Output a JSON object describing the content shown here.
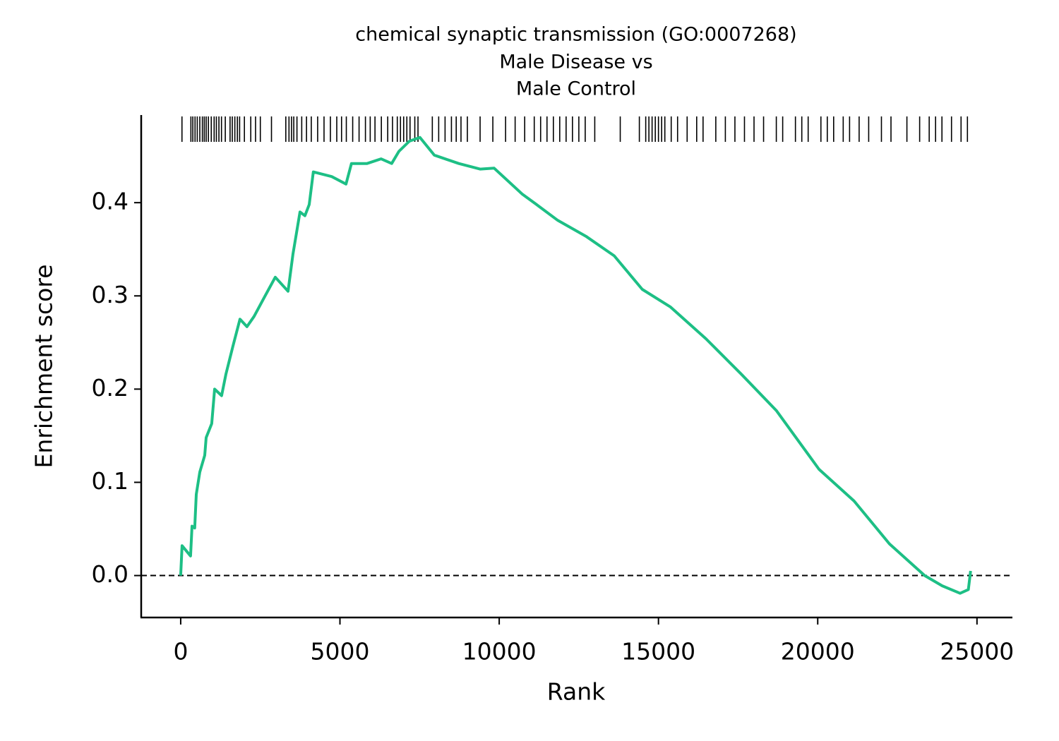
{
  "chart_data": {
    "type": "line",
    "title": [
      "chemical synaptic transmission (GO:0007268)",
      "Male Disease vs",
      "Male Control"
    ],
    "x_label": "Rank",
    "y_label": "Enrichment score",
    "color": "#1dbf85",
    "x": [
      0,
      44,
      310,
      355,
      440,
      490,
      600,
      755,
      800,
      975,
      1065,
      1285,
      1420,
      1640,
      1860,
      2080,
      2305,
      2635,
      2970,
      3370,
      3525,
      3745,
      3900,
      4035,
      4165,
      4740,
      5190,
      5360,
      5850,
      6290,
      6625,
      6850,
      7180,
      7510,
      7960,
      8730,
      9400,
      9840,
      10730,
      11170,
      11840,
      12720,
      13610,
      14490,
      15380,
      16490,
      17600,
      18700,
      20040,
      21140,
      22250,
      23360,
      23910,
      24470,
      24730,
      24800
    ],
    "values": [
      0.0,
      0.032,
      0.021,
      0.053,
      0.051,
      0.087,
      0.111,
      0.129,
      0.148,
      0.163,
      0.2,
      0.193,
      0.216,
      0.246,
      0.275,
      0.267,
      0.278,
      0.299,
      0.32,
      0.305,
      0.345,
      0.39,
      0.386,
      0.398,
      0.433,
      0.428,
      0.42,
      0.442,
      0.442,
      0.447,
      0.442,
      0.455,
      0.466,
      0.47,
      0.451,
      0.442,
      0.436,
      0.437,
      0.409,
      0.398,
      0.381,
      0.364,
      0.343,
      0.307,
      0.288,
      0.254,
      0.216,
      0.177,
      0.114,
      0.08,
      0.034,
      0.0,
      -0.011,
      -0.019,
      -0.015,
      0.005
    ],
    "hits": [
      40,
      320,
      380,
      450,
      520,
      600,
      680,
      740,
      800,
      870,
      960,
      1050,
      1120,
      1200,
      1280,
      1400,
      1550,
      1620,
      1700,
      1780,
      1850,
      2000,
      2200,
      2350,
      2500,
      2850,
      3300,
      3400,
      3480,
      3550,
      3650,
      3800,
      3950,
      4100,
      4300,
      4500,
      4700,
      4900,
      5050,
      5200,
      5400,
      5600,
      5800,
      5950,
      6100,
      6300,
      6500,
      6650,
      6800,
      6900,
      7000,
      7100,
      7200,
      7350,
      7450,
      7900,
      8100,
      8300,
      8500,
      8650,
      8800,
      9000,
      9400,
      9800,
      10200,
      10500,
      10800,
      11100,
      11300,
      11500,
      11700,
      11900,
      12100,
      12300,
      12500,
      12700,
      13000,
      13800,
      14400,
      14600,
      14700,
      14800,
      14900,
      15000,
      15100,
      15200,
      15400,
      15600,
      15900,
      16200,
      16400,
      16800,
      17100,
      17400,
      17700,
      18000,
      18300,
      18700,
      18900,
      19300,
      19500,
      19700,
      20100,
      20300,
      20500,
      20800,
      21000,
      21300,
      21600,
      22000,
      22300,
      22800,
      23200,
      23500,
      23700,
      23900,
      24200,
      24500,
      24700
    ],
    "hline": 0,
    "xlim": [
      -1240,
      26090
    ],
    "ylim": [
      -0.045,
      0.494
    ],
    "xticks": [
      0,
      5000,
      10000,
      15000,
      20000,
      25000
    ],
    "yticks": [
      {
        "value": 0,
        "label": "0.0"
      },
      0.1,
      0.2,
      0.3,
      0.4
    ]
  }
}
